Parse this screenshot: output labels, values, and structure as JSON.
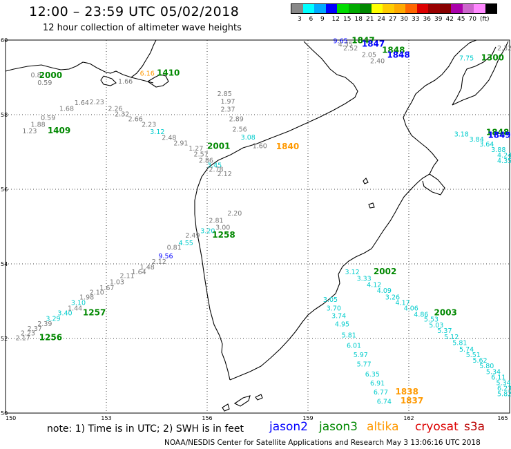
{
  "header": {
    "title": "12:00 – 23:59 UTC 05/02/2018",
    "subtitle": "12 hour collection of altimeter wave heights"
  },
  "legend": {
    "colors": [
      "#888888",
      "#00ffff",
      "#00aaff",
      "#0000ff",
      "#00dd00",
      "#00aa00",
      "#008800",
      "#ffff00",
      "#ffcc00",
      "#ffaa00",
      "#ff6600",
      "#dd0000",
      "#990000",
      "#880000",
      "#aa00aa",
      "#cc66cc",
      "#ff88ff",
      "#000000"
    ],
    "labels": [
      "3",
      "6",
      "9",
      "12",
      "15",
      "18",
      "21",
      "24",
      "27",
      "30",
      "33",
      "36",
      "39",
      "42",
      "45",
      "70",
      "(ft)"
    ]
  },
  "map": {
    "lat_ticks": [
      "60",
      "58",
      "56",
      "54",
      "52",
      "50"
    ],
    "lon_ticks": [
      "150",
      "153",
      "156",
      "159",
      "162",
      "165"
    ]
  },
  "colors": {
    "gray": "#777777",
    "cyan": "#00cccc",
    "blue": "#0000ff",
    "green": "#008800",
    "orange": "#ff9900",
    "red": "#dd0000"
  },
  "observations": [
    {
      "t": "9.65",
      "c": "blue",
      "lon": 159.75,
      "lat": 59.92
    },
    {
      "t": "1847",
      "c": "green",
      "lon": 160.3,
      "lat": 59.92
    },
    {
      "t": "4.35",
      "c": "gray",
      "lon": 159.9,
      "lat": 59.82
    },
    {
      "t": "1847",
      "c": "blue",
      "lon": 160.6,
      "lat": 59.82
    },
    {
      "t": "2.52",
      "c": "gray",
      "lon": 160.05,
      "lat": 59.72
    },
    {
      "t": "1848",
      "c": "green",
      "lon": 161.2,
      "lat": 59.66
    },
    {
      "t": "2.05",
      "c": "gray",
      "lon": 160.6,
      "lat": 59.55
    },
    {
      "t": "1848",
      "c": "blue",
      "lon": 161.35,
      "lat": 59.53
    },
    {
      "t": "2.40",
      "c": "gray",
      "lon": 160.85,
      "lat": 59.38
    },
    {
      "t": "2.32",
      "c": "gray",
      "lon": 164.7,
      "lat": 59.72
    },
    {
      "t": "7.75",
      "c": "cyan",
      "lon": 163.5,
      "lat": 59.45
    },
    {
      "t": "1300",
      "c": "green",
      "lon": 164.15,
      "lat": 59.45
    },
    {
      "t": "0.8",
      "c": "gray",
      "lon": 150.75,
      "lat": 59.0
    },
    {
      "t": "0.59",
      "c": "gray",
      "lon": 150.95,
      "lat": 58.8
    },
    {
      "t": "2000",
      "c": "green",
      "lon": 151.0,
      "lat": 58.98
    },
    {
      "t": "1.66",
      "c": "gray",
      "lon": 153.35,
      "lat": 58.83
    },
    {
      "t": "6.16",
      "c": "orange",
      "lon": 154.0,
      "lat": 59.05
    },
    {
      "t": "1410",
      "c": "green",
      "lon": 154.5,
      "lat": 59.05
    },
    {
      "t": "2.85",
      "c": "gray",
      "lon": 156.3,
      "lat": 58.5
    },
    {
      "t": "1.97",
      "c": "gray",
      "lon": 156.4,
      "lat": 58.3
    },
    {
      "t": "2.37",
      "c": "gray",
      "lon": 156.4,
      "lat": 58.08
    },
    {
      "t": "2.89",
      "c": "gray",
      "lon": 156.65,
      "lat": 57.82
    },
    {
      "t": "2.56",
      "c": "gray",
      "lon": 156.75,
      "lat": 57.55
    },
    {
      "t": "3.08",
      "c": "cyan",
      "lon": 157.0,
      "lat": 57.33
    },
    {
      "t": "1.60",
      "c": "gray",
      "lon": 157.35,
      "lat": 57.1
    },
    {
      "t": "1840",
      "c": "orange",
      "lon": 158.05,
      "lat": 57.07
    },
    {
      "t": "1.64",
      "c": "gray",
      "lon": 152.05,
      "lat": 58.26
    },
    {
      "t": "2.23",
      "c": "gray",
      "lon": 152.5,
      "lat": 58.28
    },
    {
      "t": "1.68",
      "c": "gray",
      "lon": 151.6,
      "lat": 58.1
    },
    {
      "t": "2.26",
      "c": "gray",
      "lon": 153.05,
      "lat": 58.1
    },
    {
      "t": "0.59",
      "c": "gray",
      "lon": 151.05,
      "lat": 57.85
    },
    {
      "t": "2.32",
      "c": "gray",
      "lon": 153.25,
      "lat": 57.95
    },
    {
      "t": "2.66",
      "c": "gray",
      "lon": 153.65,
      "lat": 57.82
    },
    {
      "t": "1.88",
      "c": "gray",
      "lon": 150.75,
      "lat": 57.68
    },
    {
      "t": "2.23",
      "c": "gray",
      "lon": 154.05,
      "lat": 57.68
    },
    {
      "t": "1.23",
      "c": "gray",
      "lon": 150.5,
      "lat": 57.5
    },
    {
      "t": "1409",
      "c": "green",
      "lon": 151.25,
      "lat": 57.5
    },
    {
      "t": "3.12",
      "c": "cyan",
      "lon": 154.3,
      "lat": 57.48
    },
    {
      "t": "2.48",
      "c": "gray",
      "lon": 154.65,
      "lat": 57.32
    },
    {
      "t": "2.91",
      "c": "gray",
      "lon": 155.0,
      "lat": 57.18
    },
    {
      "t": "1.27",
      "c": "gray",
      "lon": 155.45,
      "lat": 57.04
    },
    {
      "t": "2001",
      "c": "green",
      "lon": 156.0,
      "lat": 57.08
    },
    {
      "t": "2.57",
      "c": "gray",
      "lon": 155.6,
      "lat": 56.88
    },
    {
      "t": "2.86",
      "c": "gray",
      "lon": 155.75,
      "lat": 56.71
    },
    {
      "t": "3.45",
      "c": "cyan",
      "lon": 156.0,
      "lat": 56.58
    },
    {
      "t": "2.78",
      "c": "gray",
      "lon": 156.05,
      "lat": 56.47
    },
    {
      "t": "2.12",
      "c": "gray",
      "lon": 156.3,
      "lat": 56.35
    },
    {
      "t": "3.18",
      "c": "cyan",
      "lon": 163.35,
      "lat": 57.42
    },
    {
      "t": "1848",
      "c": "green",
      "lon": 164.3,
      "lat": 57.45
    },
    {
      "t": "1849",
      "c": "blue",
      "lon": 164.35,
      "lat": 57.38
    },
    {
      "t": "3.84",
      "c": "cyan",
      "lon": 163.8,
      "lat": 57.28
    },
    {
      "t": "3.64",
      "c": "cyan",
      "lon": 164.1,
      "lat": 57.15
    },
    {
      "t": "3.88",
      "c": "cyan",
      "lon": 164.45,
      "lat": 57.0
    },
    {
      "t": "4.24",
      "c": "cyan",
      "lon": 164.75,
      "lat": 56.85
    },
    {
      "t": "4.35",
      "c": "cyan",
      "lon": 165.0,
      "lat": 56.7
    },
    {
      "t": "2.20",
      "c": "gray",
      "lon": 156.6,
      "lat": 55.3
    },
    {
      "t": "2.81",
      "c": "gray",
      "lon": 156.05,
      "lat": 55.1
    },
    {
      "t": "3.00",
      "c": "gray",
      "lon": 156.25,
      "lat": 54.92
    },
    {
      "t": "3.20",
      "c": "cyan",
      "lon": 155.8,
      "lat": 54.82
    },
    {
      "t": "2.49",
      "c": "gray",
      "lon": 155.35,
      "lat": 54.7
    },
    {
      "t": "1258",
      "c": "green",
      "lon": 156.15,
      "lat": 54.7
    },
    {
      "t": "4.55",
      "c": "cyan",
      "lon": 155.15,
      "lat": 54.5
    },
    {
      "t": "0.81",
      "c": "gray",
      "lon": 154.8,
      "lat": 54.38
    },
    {
      "t": "9.56",
      "c": "blue",
      "lon": 154.55,
      "lat": 54.15
    },
    {
      "t": "2.12",
      "c": "gray",
      "lon": 154.35,
      "lat": 54.0
    },
    {
      "t": "1.48",
      "c": "gray",
      "lon": 154.0,
      "lat": 53.85
    },
    {
      "t": "1.64",
      "c": "gray",
      "lon": 153.75,
      "lat": 53.72
    },
    {
      "t": "2.11",
      "c": "gray",
      "lon": 153.4,
      "lat": 53.62
    },
    {
      "t": "1.03",
      "c": "gray",
      "lon": 153.1,
      "lat": 53.45
    },
    {
      "t": "1.67",
      "c": "gray",
      "lon": 152.8,
      "lat": 53.3
    },
    {
      "t": "2.10",
      "c": "gray",
      "lon": 152.5,
      "lat": 53.18
    },
    {
      "t": "1.98",
      "c": "gray",
      "lon": 152.2,
      "lat": 53.05
    },
    {
      "t": "3.10",
      "c": "cyan",
      "lon": 151.95,
      "lat": 52.9
    },
    {
      "t": "1.44",
      "c": "gray",
      "lon": 151.85,
      "lat": 52.75
    },
    {
      "t": "3.40",
      "c": "cyan",
      "lon": 151.55,
      "lat": 52.62
    },
    {
      "t": "1257",
      "c": "green",
      "lon": 152.3,
      "lat": 52.62
    },
    {
      "t": "3.29",
      "c": "cyan",
      "lon": 151.2,
      "lat": 52.47
    },
    {
      "t": "2.39",
      "c": "gray",
      "lon": 150.95,
      "lat": 52.33
    },
    {
      "t": "2.37",
      "c": "gray",
      "lon": 150.65,
      "lat": 52.2
    },
    {
      "t": "2.23",
      "c": "gray",
      "lon": 150.45,
      "lat": 52.08
    },
    {
      "t": "2.17",
      "c": "gray",
      "lon": 150.3,
      "lat": 51.95
    },
    {
      "t": "1256",
      "c": "green",
      "lon": 151.0,
      "lat": 51.95
    },
    {
      "t": "3.12",
      "c": "cyan",
      "lon": 160.1,
      "lat": 53.72
    },
    {
      "t": "2002",
      "c": "green",
      "lon": 160.95,
      "lat": 53.72
    },
    {
      "t": "3.33",
      "c": "cyan",
      "lon": 160.45,
      "lat": 53.55
    },
    {
      "t": "4.12",
      "c": "cyan",
      "lon": 160.75,
      "lat": 53.38
    },
    {
      "t": "4.09",
      "c": "cyan",
      "lon": 161.05,
      "lat": 53.22
    },
    {
      "t": "3.26",
      "c": "cyan",
      "lon": 161.3,
      "lat": 53.05
    },
    {
      "t": "4.17",
      "c": "cyan",
      "lon": 161.6,
      "lat": 52.9
    },
    {
      "t": "4.06",
      "c": "cyan",
      "lon": 161.85,
      "lat": 52.75
    },
    {
      "t": "2003",
      "c": "green",
      "lon": 162.75,
      "lat": 52.62
    },
    {
      "t": "4.86",
      "c": "cyan",
      "lon": 162.15,
      "lat": 52.58
    },
    {
      "t": "5.53",
      "c": "cyan",
      "lon": 162.45,
      "lat": 52.45
    },
    {
      "t": "5.03",
      "c": "cyan",
      "lon": 162.6,
      "lat": 52.3
    },
    {
      "t": "5.37",
      "c": "cyan",
      "lon": 162.85,
      "lat": 52.15
    },
    {
      "t": "5.12",
      "c": "cyan",
      "lon": 163.05,
      "lat": 51.98
    },
    {
      "t": "5.81",
      "c": "cyan",
      "lon": 163.3,
      "lat": 51.82
    },
    {
      "t": "5.74",
      "c": "cyan",
      "lon": 163.5,
      "lat": 51.65
    },
    {
      "t": "5.51",
      "c": "cyan",
      "lon": 163.7,
      "lat": 51.5
    },
    {
      "t": "5.62",
      "c": "cyan",
      "lon": 163.9,
      "lat": 51.35
    },
    {
      "t": "5.80",
      "c": "cyan",
      "lon": 164.1,
      "lat": 51.2
    },
    {
      "t": "5.34",
      "c": "cyan",
      "lon": 164.3,
      "lat": 51.05
    },
    {
      "t": "6.11",
      "c": "cyan",
      "lon": 164.45,
      "lat": 50.9
    },
    {
      "t": "5.34",
      "c": "cyan",
      "lon": 164.6,
      "lat": 50.75
    },
    {
      "t": "6.23",
      "c": "cyan",
      "lon": 164.8,
      "lat": 50.6
    },
    {
      "t": "5.82",
      "c": "cyan",
      "lon": 164.95,
      "lat": 50.45
    },
    {
      "t": "3.05",
      "c": "cyan",
      "lon": 159.45,
      "lat": 52.98
    },
    {
      "t": "3.70",
      "c": "cyan",
      "lon": 159.55,
      "lat": 52.75
    },
    {
      "t": "3.74",
      "c": "cyan",
      "lon": 159.7,
      "lat": 52.55
    },
    {
      "t": "4.95",
      "c": "cyan",
      "lon": 159.8,
      "lat": 52.32
    },
    {
      "t": "5.81",
      "c": "cyan",
      "lon": 160.0,
      "lat": 52.03
    },
    {
      "t": "6.01",
      "c": "cyan",
      "lon": 160.15,
      "lat": 51.75
    },
    {
      "t": "5.97",
      "c": "cyan",
      "lon": 160.35,
      "lat": 51.5
    },
    {
      "t": "5.77",
      "c": "cyan",
      "lon": 160.45,
      "lat": 51.25
    },
    {
      "t": "6.35",
      "c": "cyan",
      "lon": 160.7,
      "lat": 50.98
    },
    {
      "t": "6.91",
      "c": "cyan",
      "lon": 160.85,
      "lat": 50.74
    },
    {
      "t": "6.77",
      "c": "cyan",
      "lon": 160.95,
      "lat": 50.5
    },
    {
      "t": "1838",
      "c": "orange",
      "lon": 161.6,
      "lat": 50.5
    },
    {
      "t": "6.74",
      "c": "cyan",
      "lon": 161.05,
      "lat": 50.25
    },
    {
      "t": "1837",
      "c": "orange",
      "lon": 161.75,
      "lat": 50.26
    }
  ],
  "footer": {
    "note": "note:  1) Time is in UTC;  2) SWH is in feet",
    "satellites": [
      {
        "name": "jason2",
        "color": "#0000ff"
      },
      {
        "name": "jason3",
        "color": "#008800"
      },
      {
        "name": "altika",
        "color": "#ff9900"
      },
      {
        "name": "cryosat",
        "color": "#dd0000"
      },
      {
        "name": "s3a",
        "color": "#bb0000"
      }
    ],
    "credit": "NOAA/NESDIS Center for Satellite Applications and Research    May  3 13:06:16 UTC 2018"
  }
}
